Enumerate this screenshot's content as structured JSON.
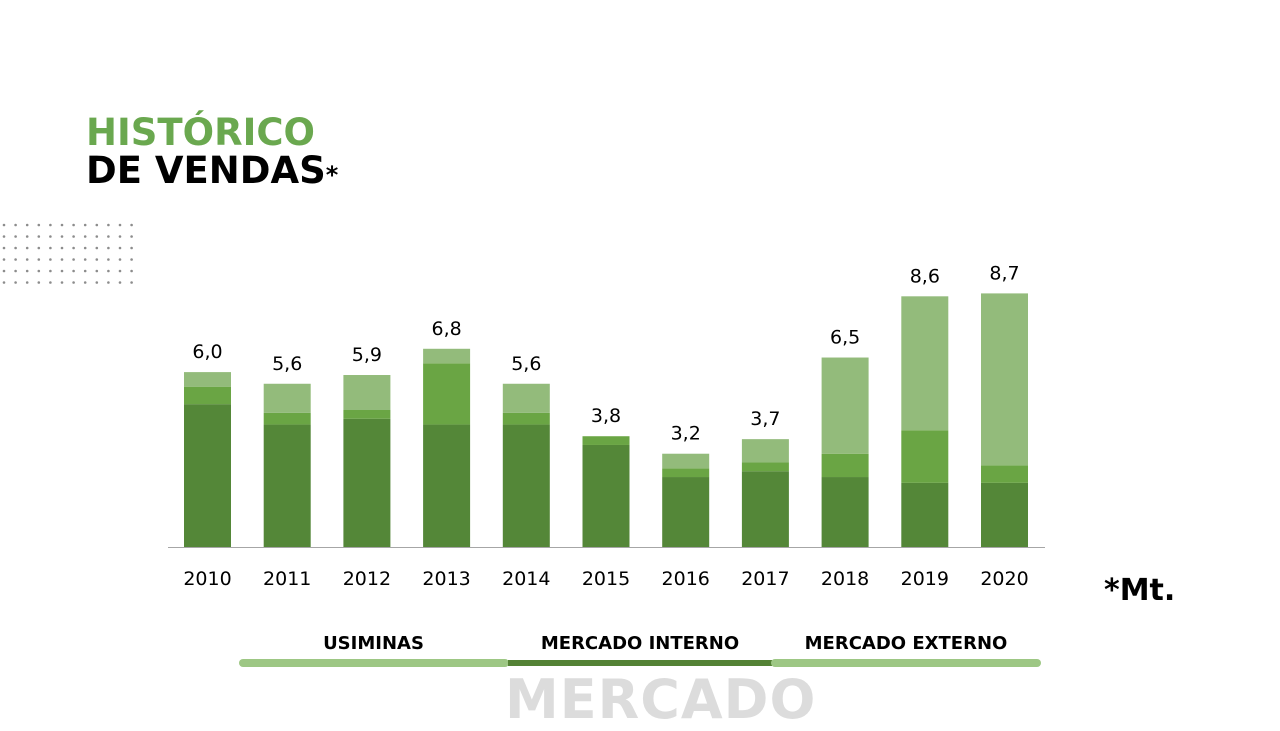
{
  "header": {
    "title_line1": "HISTÓRICO",
    "title_line2": "DE VENDAS",
    "title_star": "*"
  },
  "unit_note": "*Mt.",
  "tabs": [
    {
      "label": "USIMINAS"
    },
    {
      "label": "MERCADO INTERNO"
    },
    {
      "label": "MERCADO EXTERNO"
    }
  ],
  "watermark": "MERCADO",
  "colors": {
    "dark_green": "#548738",
    "mid_green": "#6aa544",
    "light_green": "#93bb7b",
    "title_green": "#6aa84f",
    "tab_light": "#9dc784",
    "tab_dark": "#548235"
  },
  "chart_data": {
    "type": "bar",
    "stacked": true,
    "categories": [
      "2010",
      "2011",
      "2012",
      "2013",
      "2014",
      "2015",
      "2016",
      "2017",
      "2018",
      "2019",
      "2020"
    ],
    "totals": [
      "6,0",
      "5,6",
      "5,9",
      "6,8",
      "5,6",
      "3,8",
      "3,2",
      "3,7",
      "6,5",
      "8,6",
      "8,7"
    ],
    "series": [
      {
        "values": [
          4.9,
          4.2,
          4.4,
          4.2,
          4.2,
          3.5,
          2.4,
          2.6,
          2.4,
          2.2,
          2.2
        ]
      },
      {
        "values": [
          0.6,
          0.4,
          0.3,
          2.1,
          0.4,
          0.3,
          0.3,
          0.3,
          0.8,
          1.8,
          0.6
        ]
      },
      {
        "values": [
          0.5,
          1.0,
          1.2,
          0.5,
          1.0,
          0.0,
          0.5,
          0.8,
          3.3,
          4.6,
          5.9
        ]
      }
    ],
    "ylim": [
      0,
      10
    ],
    "grid": false,
    "legend": "none"
  }
}
